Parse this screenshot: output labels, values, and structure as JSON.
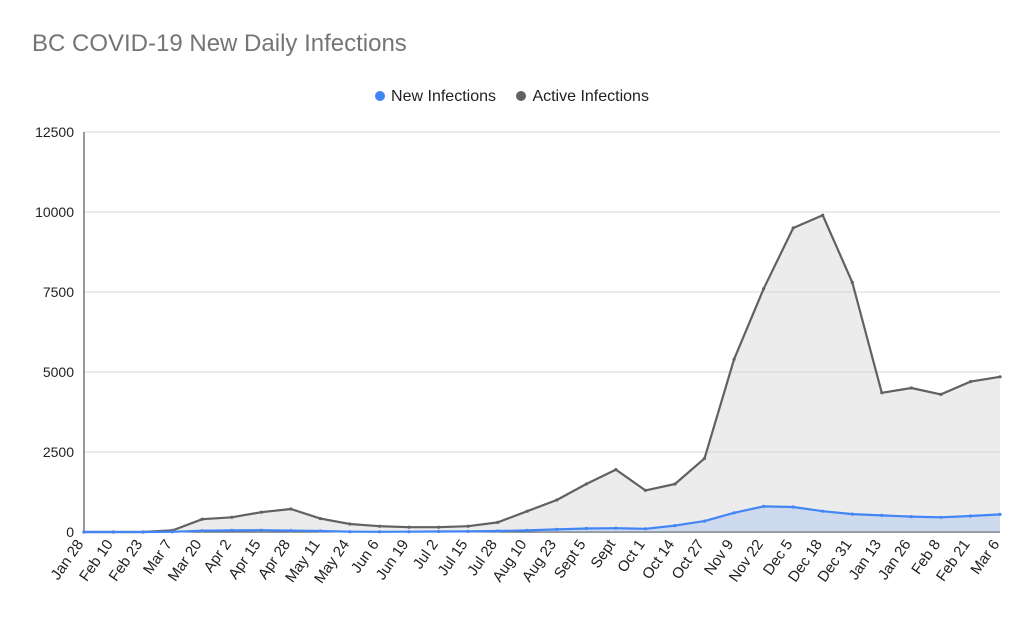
{
  "chart_data": {
    "type": "area",
    "title": "BC COVID-19 New Daily Infections",
    "xlabel": "",
    "ylabel": "",
    "ylim": [
      0,
      12500
    ],
    "y_ticks": [
      "0",
      "2500",
      "5000",
      "7500",
      "10000",
      "12500"
    ],
    "x_tick_labels": [
      "Jan 28",
      "Feb 10",
      "Feb 23",
      "Mar 7",
      "Mar 20",
      "Apr 2",
      "Apr 15",
      "Apr 28",
      "May 11",
      "May 24",
      "Jun 6",
      "Jun 19",
      "Jul 2",
      "Jul 15",
      "Jul 28",
      "Aug 10",
      "Aug 23",
      "Sept 5",
      "Sept",
      "Oct 1",
      "Oct 14",
      "Oct 27",
      "Nov 9",
      "Nov 22",
      "Dec 5",
      "Dec 18",
      "Dec 31",
      "Jan 13",
      "Jan 26",
      "Feb 8",
      "Feb 21",
      "Mar 6"
    ],
    "grid": true,
    "legend_position": "top",
    "series": [
      {
        "name": "New Infections",
        "color": "#4285f4",
        "values": [
          0,
          0,
          0,
          5,
          40,
          50,
          55,
          45,
          30,
          10,
          5,
          10,
          15,
          20,
          30,
          50,
          80,
          110,
          120,
          100,
          200,
          340,
          600,
          800,
          780,
          650,
          560,
          520,
          480,
          460,
          500,
          550
        ]
      },
      {
        "name": "Active Infections",
        "color": "#616161",
        "values": [
          0,
          0,
          0,
          50,
          400,
          460,
          620,
          720,
          420,
          250,
          180,
          150,
          150,
          180,
          300,
          650,
          1000,
          1500,
          1950,
          1300,
          1500,
          2300,
          5400,
          7600,
          9500,
          9900,
          7800,
          4350,
          4500,
          4300,
          4700,
          4850
        ]
      }
    ]
  }
}
